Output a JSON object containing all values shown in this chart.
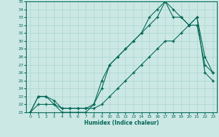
{
  "xlabel": "Humidex (Indice chaleur)",
  "bg_color": "#cce8e4",
  "grid_color": "#a8d4cc",
  "line_color": "#006655",
  "xlim": [
    -0.5,
    23.5
  ],
  "ylim": [
    21,
    35
  ],
  "xticks": [
    0,
    1,
    2,
    3,
    4,
    5,
    6,
    7,
    8,
    9,
    10,
    11,
    12,
    13,
    14,
    15,
    16,
    17,
    18,
    19,
    20,
    21,
    22,
    23
  ],
  "yticks": [
    21,
    22,
    23,
    24,
    25,
    26,
    27,
    28,
    29,
    30,
    31,
    32,
    33,
    34,
    35
  ],
  "line1_x": [
    0,
    1,
    2,
    3,
    4,
    5,
    6,
    7,
    8,
    9,
    10,
    11,
    12,
    13,
    14,
    15,
    16,
    17,
    18,
    19,
    20,
    21,
    22,
    23
  ],
  "line1_y": [
    21,
    23,
    23,
    22,
    21,
    21,
    21,
    21,
    22,
    24,
    27,
    28,
    29,
    30,
    31,
    32,
    33,
    35,
    33,
    33,
    32,
    32,
    27,
    26
  ],
  "line2_x": [
    0,
    1,
    2,
    3,
    4,
    5,
    6,
    7,
    8,
    9,
    10,
    11,
    12,
    13,
    14,
    15,
    16,
    17,
    18,
    19,
    20,
    21,
    22,
    23
  ],
  "line2_y": [
    21,
    23,
    23,
    22.5,
    21.5,
    21.5,
    21.5,
    21.5,
    22,
    25,
    27,
    28,
    29,
    30,
    31,
    33,
    34,
    35,
    34,
    33,
    32,
    33,
    28,
    26
  ],
  "line3_x": [
    0,
    1,
    2,
    3,
    4,
    5,
    6,
    7,
    8,
    9,
    10,
    11,
    12,
    13,
    14,
    15,
    16,
    17,
    18,
    19,
    20,
    21,
    22,
    23
  ],
  "line3_y": [
    21,
    22,
    22,
    22,
    21.5,
    21.5,
    21.5,
    21.5,
    21.5,
    22,
    23,
    24,
    25,
    26,
    27,
    28,
    29,
    30,
    30,
    31,
    32,
    33,
    26,
    25
  ]
}
